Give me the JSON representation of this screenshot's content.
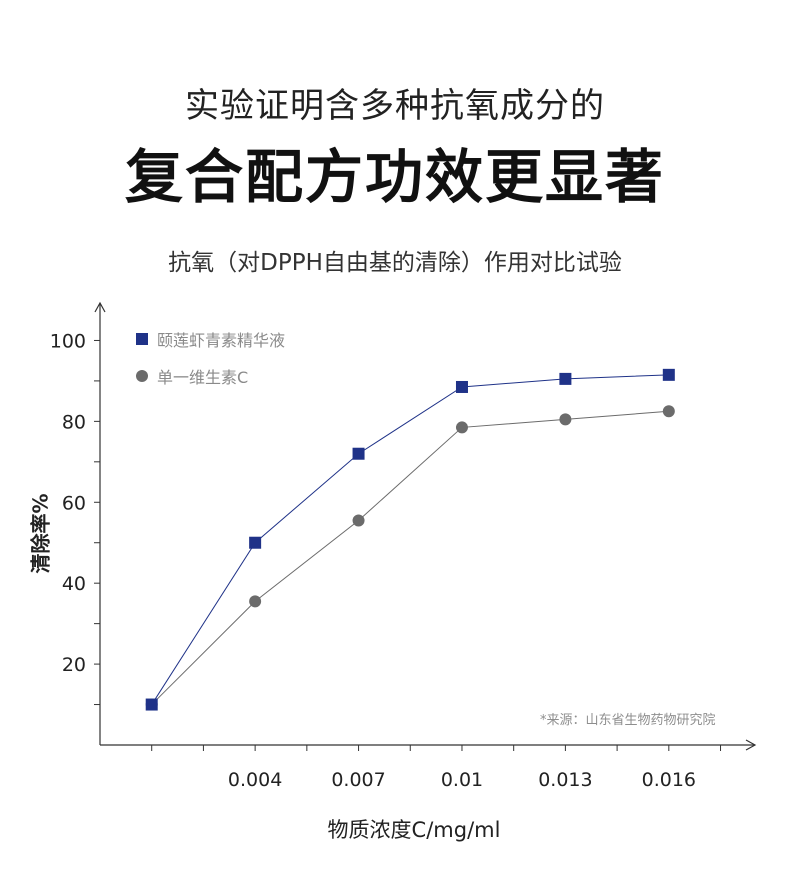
{
  "header": {
    "line1": "实验证明含多种抗氧成分的",
    "line2": "复合配方功效更显著"
  },
  "chart_data": {
    "type": "line",
    "title": "抗氧（对DPPH自由基的清除）作用对比试验",
    "xlabel": "物质浓度C/mg/ml",
    "ylabel": "清除率%",
    "categories": [
      "",
      "0.004",
      "0.007",
      "0.01",
      "0.013",
      "0.016"
    ],
    "x": [
      0.001,
      0.004,
      0.007,
      0.01,
      0.013,
      0.016
    ],
    "xlim": [
      -0.0005,
      0.0185
    ],
    "ylim": [
      0,
      110
    ],
    "yticks": [
      20,
      40,
      60,
      80,
      100
    ],
    "grid": false,
    "legend": "top-left",
    "series": [
      {
        "name": "颐莲虾青素精华液",
        "marker": "square",
        "color": "#1f3288",
        "values": [
          10,
          50,
          72,
          88.5,
          90.5,
          91.5
        ]
      },
      {
        "name": "单一维生素C",
        "marker": "circle",
        "color": "#6b6b6b",
        "values": [
          10,
          35.5,
          55.5,
          78.5,
          80.5,
          82.5
        ]
      }
    ],
    "annotation": "*来源：山东省生物药物研究院"
  }
}
